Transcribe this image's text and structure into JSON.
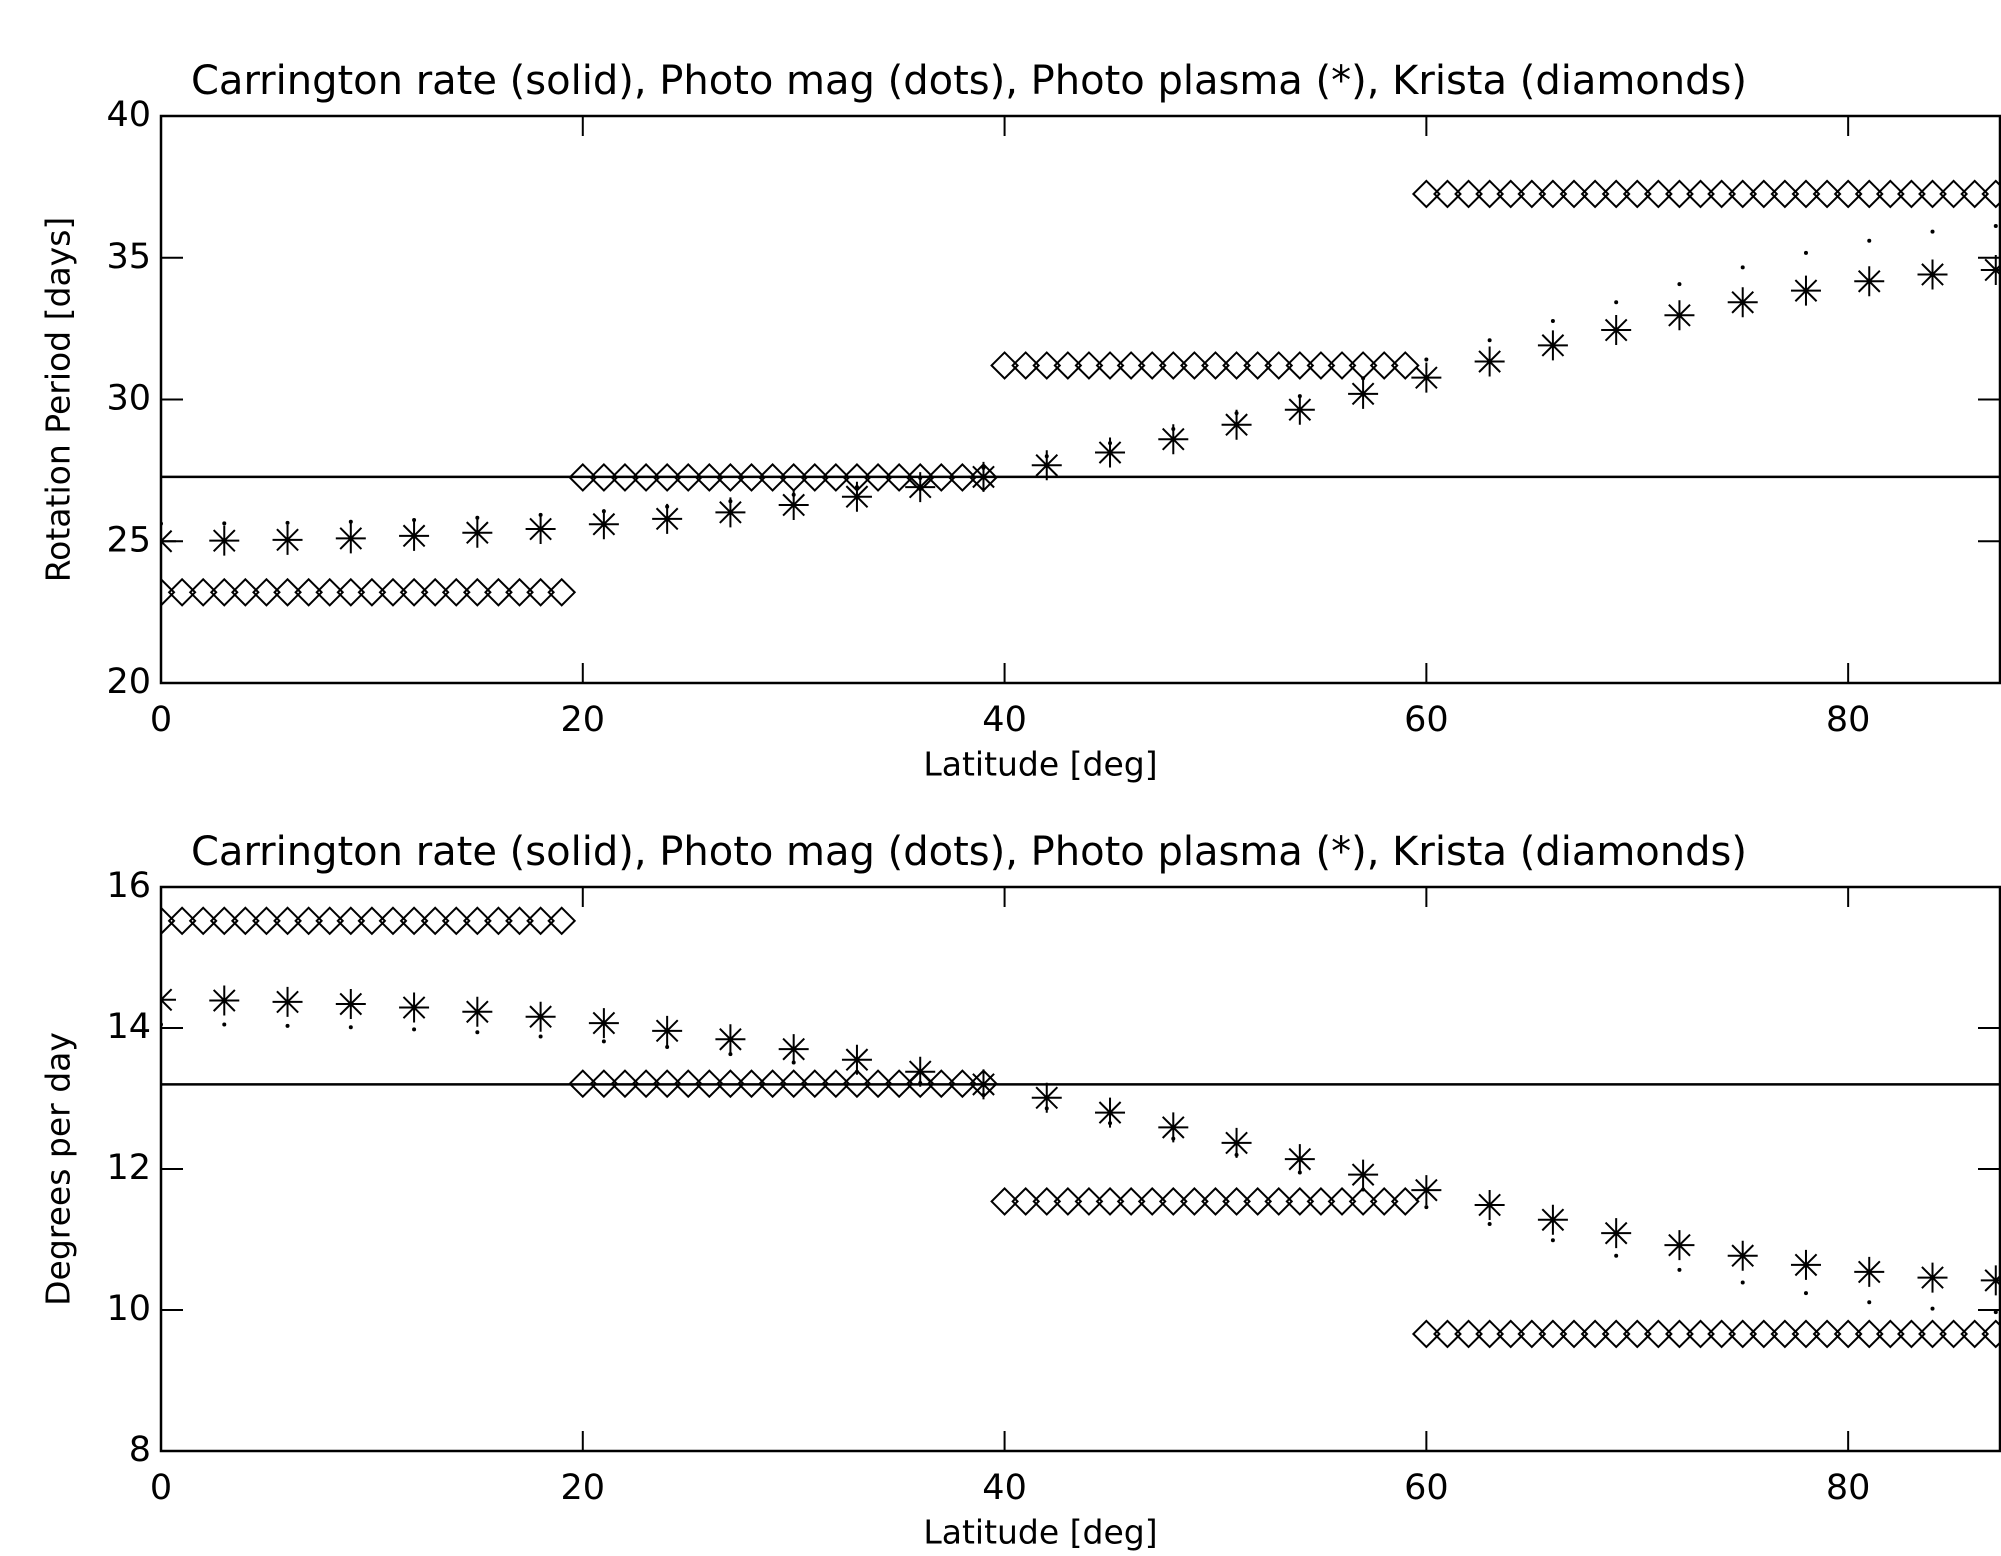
{
  "chart_data": [
    {
      "type": "line",
      "title": "Carrington rate (solid), Photo mag (dots), Photo plasma (*), Krista (diamonds)",
      "x_label": "Latitude [deg]",
      "y_label": "Rotation Period [days]",
      "xlim": [
        0,
        87.2
      ],
      "xticks": [
        0,
        20,
        40,
        60,
        80
      ],
      "ylim": [
        20,
        40
      ],
      "yticks": [
        20,
        25,
        30,
        35,
        40
      ],
      "x": [
        0,
        3,
        6,
        9,
        12,
        15,
        18,
        21,
        24,
        27,
        30,
        33,
        36,
        39,
        42,
        45,
        48,
        51,
        54,
        57,
        60,
        63,
        66,
        69,
        72,
        75,
        78,
        81,
        84,
        87
      ],
      "series": [
        {
          "marker": "solid",
          "color": "#000000",
          "x": [
            0,
            87.2
          ],
          "values": [
            27.27,
            27.27
          ]
        },
        {
          "marker": "dot",
          "color": "#000000",
          "values": [
            25.62,
            25.63,
            25.65,
            25.69,
            25.75,
            25.83,
            25.93,
            26.06,
            26.22,
            26.41,
            26.64,
            26.91,
            27.23,
            27.59,
            28.0,
            28.46,
            28.96,
            29.52,
            30.12,
            30.75,
            31.41,
            32.09,
            32.77,
            33.43,
            34.07,
            34.66,
            35.17,
            35.6,
            35.92,
            36.12
          ]
        },
        {
          "marker": "asterisk",
          "color": "#000000",
          "values": [
            25.0,
            25.02,
            25.05,
            25.1,
            25.19,
            25.3,
            25.43,
            25.6,
            25.79,
            26.02,
            26.28,
            26.57,
            26.91,
            27.27,
            27.68,
            28.13,
            28.6,
            29.11,
            29.64,
            30.2,
            30.77,
            31.34,
            31.91,
            32.45,
            32.97,
            33.43,
            33.84,
            34.17,
            34.41,
            34.57
          ]
        },
        {
          "marker": "diamond",
          "color": "#000000",
          "x": [
            0,
            1,
            2,
            3,
            4,
            5,
            6,
            7,
            8,
            9,
            10,
            11,
            12,
            13,
            14,
            15,
            16,
            17,
            18,
            19,
            20,
            21,
            22,
            23,
            24,
            25,
            26,
            27,
            28,
            29,
            30,
            31,
            32,
            33,
            34,
            35,
            36,
            37,
            38,
            39,
            40,
            41,
            42,
            43,
            44,
            45,
            46,
            47,
            48,
            49,
            50,
            51,
            52,
            53,
            54,
            55,
            56,
            57,
            58,
            59,
            60,
            61,
            62,
            63,
            64,
            65,
            66,
            67,
            68,
            69,
            70,
            71,
            72,
            73,
            74,
            75,
            76,
            77,
            78,
            79,
            80,
            81,
            82,
            83,
            84,
            85,
            86,
            87
          ],
          "values": [
            23.2,
            23.2,
            23.2,
            23.2,
            23.2,
            23.2,
            23.2,
            23.2,
            23.2,
            23.2,
            23.2,
            23.2,
            23.2,
            23.2,
            23.2,
            23.2,
            23.2,
            23.2,
            23.2,
            23.2,
            27.25,
            27.25,
            27.25,
            27.25,
            27.25,
            27.25,
            27.25,
            27.25,
            27.25,
            27.25,
            27.25,
            27.25,
            27.25,
            27.25,
            27.25,
            27.25,
            27.25,
            27.25,
            27.25,
            27.25,
            31.2,
            31.2,
            31.2,
            31.2,
            31.2,
            31.2,
            31.2,
            31.2,
            31.2,
            31.2,
            31.2,
            31.2,
            31.2,
            31.2,
            31.2,
            31.2,
            31.2,
            31.2,
            31.2,
            31.2,
            37.25,
            37.25,
            37.25,
            37.25,
            37.25,
            37.25,
            37.25,
            37.25,
            37.25,
            37.25,
            37.25,
            37.25,
            37.25,
            37.25,
            37.25,
            37.25,
            37.25,
            37.25,
            37.25,
            37.25,
            37.25,
            37.25,
            37.25,
            37.25,
            37.25,
            37.25,
            37.25,
            37.25
          ]
        }
      ]
    },
    {
      "type": "line",
      "title": "Carrington rate (solid), Photo mag (dots), Photo plasma (*), Krista (diamonds)",
      "x_label": "Latitude [deg]",
      "y_label": "Degrees per day",
      "xlim": [
        0,
        87.2
      ],
      "xticks": [
        0,
        20,
        40,
        60,
        80
      ],
      "ylim": [
        8,
        16
      ],
      "yticks": [
        8,
        10,
        12,
        14,
        16
      ],
      "x": [
        0,
        3,
        6,
        9,
        12,
        15,
        18,
        21,
        24,
        27,
        30,
        33,
        36,
        39,
        42,
        45,
        48,
        51,
        54,
        57,
        60,
        63,
        66,
        69,
        72,
        75,
        78,
        81,
        84,
        87
      ],
      "series": [
        {
          "marker": "solid",
          "color": "#000000",
          "x": [
            0,
            87.2
          ],
          "values": [
            13.2,
            13.2
          ]
        },
        {
          "marker": "dot",
          "color": "#000000",
          "values": [
            14.05,
            14.05,
            14.03,
            14.01,
            13.98,
            13.94,
            13.88,
            13.81,
            13.73,
            13.63,
            13.51,
            13.38,
            13.22,
            13.05,
            12.86,
            12.65,
            12.43,
            12.2,
            11.95,
            11.71,
            11.46,
            11.22,
            10.99,
            10.77,
            10.57,
            10.39,
            10.24,
            10.11,
            10.02,
            9.97
          ]
        },
        {
          "marker": "asterisk",
          "color": "#000000",
          "values": [
            14.4,
            14.39,
            14.37,
            14.34,
            14.29,
            14.23,
            14.16,
            14.07,
            13.96,
            13.84,
            13.7,
            13.55,
            13.38,
            13.2,
            13.01,
            12.8,
            12.59,
            12.37,
            12.14,
            11.92,
            11.7,
            11.49,
            11.28,
            11.09,
            10.92,
            10.77,
            10.64,
            10.54,
            10.46,
            10.42
          ]
        },
        {
          "marker": "diamond",
          "color": "#000000",
          "x": [
            0,
            1,
            2,
            3,
            4,
            5,
            6,
            7,
            8,
            9,
            10,
            11,
            12,
            13,
            14,
            15,
            16,
            17,
            18,
            19,
            20,
            21,
            22,
            23,
            24,
            25,
            26,
            27,
            28,
            29,
            30,
            31,
            32,
            33,
            34,
            35,
            36,
            37,
            38,
            39,
            40,
            41,
            42,
            43,
            44,
            45,
            46,
            47,
            48,
            49,
            50,
            51,
            52,
            53,
            54,
            55,
            56,
            57,
            58,
            59,
            60,
            61,
            62,
            63,
            64,
            65,
            66,
            67,
            68,
            69,
            70,
            71,
            72,
            73,
            74,
            75,
            76,
            77,
            78,
            79,
            80,
            81,
            82,
            83,
            84,
            85,
            86,
            87
          ],
          "values": [
            15.52,
            15.52,
            15.52,
            15.52,
            15.52,
            15.52,
            15.52,
            15.52,
            15.52,
            15.52,
            15.52,
            15.52,
            15.52,
            15.52,
            15.52,
            15.52,
            15.52,
            15.52,
            15.52,
            15.52,
            13.21,
            13.21,
            13.21,
            13.21,
            13.21,
            13.21,
            13.21,
            13.21,
            13.21,
            13.21,
            13.21,
            13.21,
            13.21,
            13.21,
            13.21,
            13.21,
            13.21,
            13.21,
            13.21,
            13.21,
            11.54,
            11.54,
            11.54,
            11.54,
            11.54,
            11.54,
            11.54,
            11.54,
            11.54,
            11.54,
            11.54,
            11.54,
            11.54,
            11.54,
            11.54,
            11.54,
            11.54,
            11.54,
            11.54,
            11.54,
            9.66,
            9.66,
            9.66,
            9.66,
            9.66,
            9.66,
            9.66,
            9.66,
            9.66,
            9.66,
            9.66,
            9.66,
            9.66,
            9.66,
            9.66,
            9.66,
            9.66,
            9.66,
            9.66,
            9.66,
            9.66,
            9.66,
            9.66,
            9.66,
            9.66,
            9.66,
            9.66,
            9.66
          ]
        }
      ]
    }
  ]
}
